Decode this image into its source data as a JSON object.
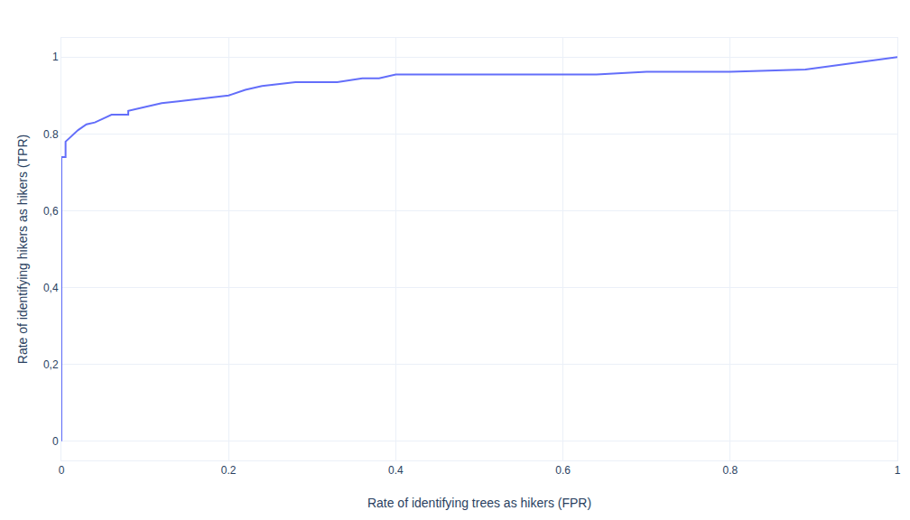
{
  "chart_data": {
    "type": "line",
    "x_label": "Rate of identifying trees as hikers (FPR)",
    "y_label": "Rate of identifying hikers as hikers (TPR)",
    "x": [
      0,
      0,
      0.005,
      0.005,
      0.01,
      0.015,
      0.02,
      0.03,
      0.04,
      0.05,
      0.06,
      0.08,
      0.08,
      0.1,
      0.12,
      0.14,
      0.16,
      0.2,
      0.22,
      0.24,
      0.28,
      0.33,
      0.36,
      0.38,
      0.4,
      0.64,
      0.7,
      0.8,
      0.89,
      1
    ],
    "values": [
      0,
      0.74,
      0.74,
      0.78,
      0.79,
      0.8,
      0.81,
      0.825,
      0.83,
      0.84,
      0.85,
      0.85,
      0.86,
      0.87,
      0.88,
      0.885,
      0.89,
      0.9,
      0.915,
      0.925,
      0.935,
      0.935,
      0.945,
      0.945,
      0.955,
      0.955,
      0.962,
      0.962,
      0.968,
      1
    ],
    "color": "#636efa",
    "xlim": [
      0,
      1
    ],
    "ylim": [
      -0.05,
      1.05
    ],
    "xticks": [
      0,
      0.2,
      0.4,
      0.6,
      0.8,
      1
    ],
    "yticks": [
      0,
      {
        "value": 0.2,
        "label": "0,2"
      },
      {
        "value": 0.4,
        "label": "0,4"
      },
      {
        "value": 0.6,
        "label": "0,6"
      },
      0.8,
      1
    ],
    "grid": true
  }
}
